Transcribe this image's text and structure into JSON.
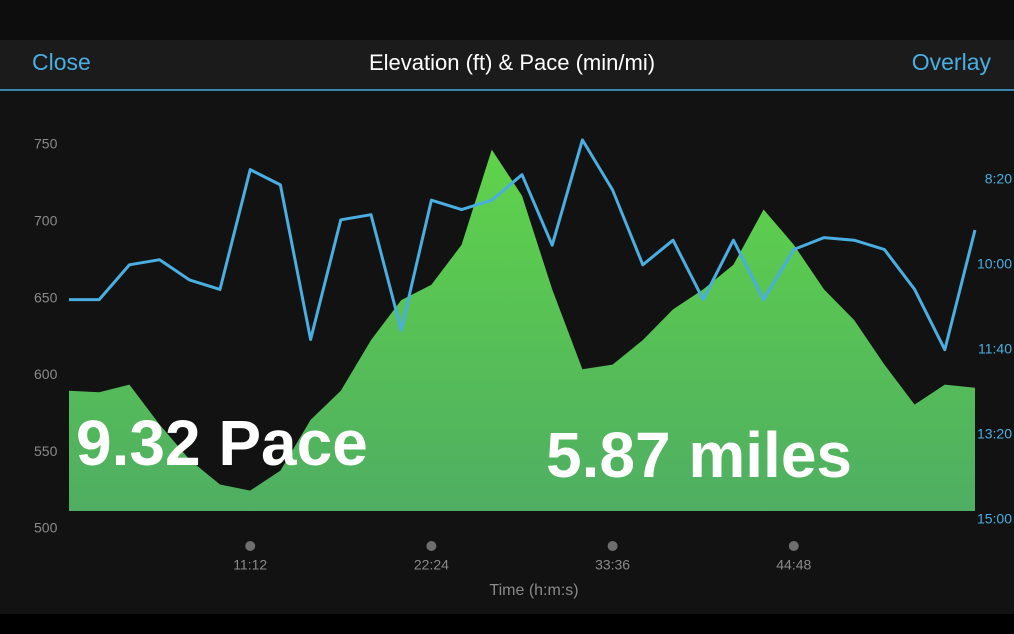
{
  "header": {
    "left_button": "Close",
    "title": "Elevation (ft) & Pace (min/mi)",
    "right_button": "Overlay"
  },
  "overlay_text": [
    "9.32 Pace",
    "5.87 miles"
  ],
  "chart_data": {
    "type": "line",
    "x_label": "Time (h:m:s)",
    "x": [
      0,
      112,
      224,
      336,
      448,
      560,
      672,
      784,
      896,
      1008,
      1120,
      1232,
      1344,
      1456,
      1568,
      1680,
      1792,
      1904,
      2016,
      2128,
      2240,
      2352,
      2464,
      2576,
      2688,
      2800,
      2912,
      3024,
      3136,
      3248,
      3360
    ],
    "xlim": [
      0,
      3360
    ],
    "xticks": [
      {
        "value": 672,
        "label": "11:12"
      },
      {
        "value": 1344,
        "label": "22:24"
      },
      {
        "value": 2016,
        "label": "33:36"
      },
      {
        "value": 2688,
        "label": "44:48"
      }
    ],
    "ylim": [
      500,
      750
    ],
    "yticks": [
      500,
      550,
      600,
      650,
      700,
      750
    ],
    "y2lim": [
      911,
      459
    ],
    "y2ticks": [
      {
        "value": 500,
        "label": "8:20"
      },
      {
        "value": 600,
        "label": "10:00"
      },
      {
        "value": 700,
        "label": "11:40"
      },
      {
        "value": 800,
        "label": "13:20"
      },
      {
        "value": 900,
        "label": "15:00"
      }
    ],
    "series": [
      {
        "name": "Elevation",
        "color": "#5fd34a",
        "fill": true,
        "values": [
          590,
          589,
          594,
          568,
          545,
          529,
          525,
          538,
          571,
          590,
          623,
          649,
          659,
          685,
          747,
          717,
          656,
          604,
          607,
          623,
          643,
          656,
          672,
          708,
          685,
          656,
          636,
          607,
          581,
          594,
          592
        ]
      },
      {
        "name": "Pace",
        "color": "#4aaee0",
        "axis": "y2",
        "values": [
          641,
          641,
          600,
          594,
          618,
          629,
          488,
          506,
          688,
          547,
          541,
          677,
          524,
          535,
          524,
          494,
          577,
          453,
          512,
          600,
          571,
          641,
          571,
          641,
          582,
          568,
          571,
          582,
          629,
          700,
          559
        ]
      }
    ]
  }
}
